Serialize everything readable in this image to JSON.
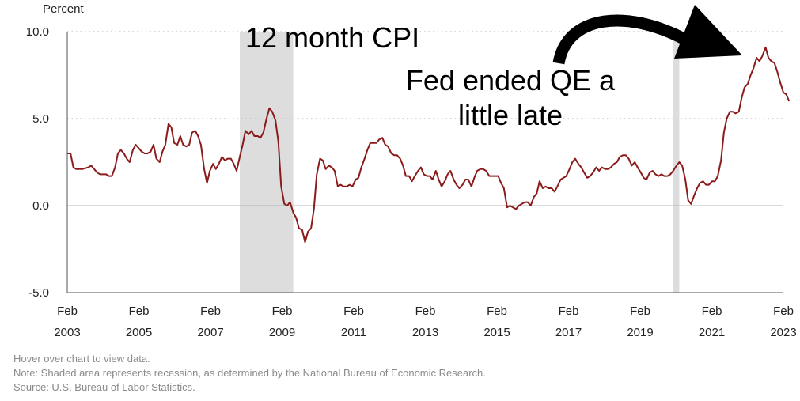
{
  "chart_data": {
    "type": "line",
    "ylabel": "Percent",
    "ylim": [
      -5,
      10
    ],
    "yticks": [
      "10.0",
      "5.0",
      "0.0",
      "-5.0"
    ],
    "xlim": [
      2003.08,
      2023.17
    ],
    "xticks": [
      {
        "month": "Feb",
        "year": "2003"
      },
      {
        "month": "Feb",
        "year": "2005"
      },
      {
        "month": "Feb",
        "year": "2007"
      },
      {
        "month": "Feb",
        "year": "2009"
      },
      {
        "month": "Feb",
        "year": "2011"
      },
      {
        "month": "Feb",
        "year": "2013"
      },
      {
        "month": "Feb",
        "year": "2015"
      },
      {
        "month": "Feb",
        "year": "2017"
      },
      {
        "month": "Feb",
        "year": "2019"
      },
      {
        "month": "Feb",
        "year": "2021"
      },
      {
        "month": "Feb",
        "year": "2023"
      }
    ],
    "grid": "horizontal dotted",
    "recessions": [
      [
        2007.92,
        2009.42
      ],
      [
        2020.08,
        2020.25
      ]
    ],
    "series": [
      {
        "name": "",
        "color": "#8b1a1a",
        "points": [
          [
            2003.08,
            3.0
          ],
          [
            2003.17,
            3.0
          ],
          [
            2003.25,
            2.2
          ],
          [
            2003.33,
            2.1
          ],
          [
            2003.5,
            2.1
          ],
          [
            2003.67,
            2.2
          ],
          [
            2003.75,
            2.3
          ],
          [
            2003.92,
            1.9
          ],
          [
            2004.0,
            1.8
          ],
          [
            2004.17,
            1.8
          ],
          [
            2004.25,
            1.7
          ],
          [
            2004.33,
            1.7
          ],
          [
            2004.42,
            2.2
          ],
          [
            2004.5,
            3.0
          ],
          [
            2004.58,
            3.2
          ],
          [
            2004.67,
            3.0
          ],
          [
            2004.75,
            2.7
          ],
          [
            2004.83,
            2.5
          ],
          [
            2004.92,
            3.2
          ],
          [
            2005.0,
            3.5
          ],
          [
            2005.17,
            3.1
          ],
          [
            2005.25,
            3.0
          ],
          [
            2005.33,
            3.0
          ],
          [
            2005.42,
            3.1
          ],
          [
            2005.5,
            3.5
          ],
          [
            2005.58,
            2.7
          ],
          [
            2005.67,
            2.5
          ],
          [
            2005.75,
            3.1
          ],
          [
            2005.83,
            3.5
          ],
          [
            2005.92,
            4.7
          ],
          [
            2006.0,
            4.5
          ],
          [
            2006.08,
            3.6
          ],
          [
            2006.17,
            3.5
          ],
          [
            2006.25,
            4.0
          ],
          [
            2006.33,
            3.5
          ],
          [
            2006.42,
            3.4
          ],
          [
            2006.5,
            3.5
          ],
          [
            2006.58,
            4.2
          ],
          [
            2006.67,
            4.3
          ],
          [
            2006.75,
            4.0
          ],
          [
            2006.83,
            3.5
          ],
          [
            2006.92,
            2.1
          ],
          [
            2007.0,
            1.3
          ],
          [
            2007.08,
            2.0
          ],
          [
            2007.17,
            2.4
          ],
          [
            2007.25,
            2.1
          ],
          [
            2007.33,
            2.4
          ],
          [
            2007.42,
            2.8
          ],
          [
            2007.5,
            2.6
          ],
          [
            2007.58,
            2.7
          ],
          [
            2007.67,
            2.7
          ],
          [
            2007.75,
            2.4
          ],
          [
            2007.83,
            2.0
          ],
          [
            2007.92,
            2.8
          ],
          [
            2008.0,
            3.5
          ],
          [
            2008.08,
            4.3
          ],
          [
            2008.17,
            4.1
          ],
          [
            2008.25,
            4.3
          ],
          [
            2008.33,
            4.0
          ],
          [
            2008.42,
            4.0
          ],
          [
            2008.5,
            3.9
          ],
          [
            2008.58,
            4.2
          ],
          [
            2008.67,
            5.0
          ],
          [
            2008.75,
            5.6
          ],
          [
            2008.83,
            5.4
          ],
          [
            2008.92,
            4.9
          ],
          [
            2009.0,
            3.7
          ],
          [
            2009.08,
            1.1
          ],
          [
            2009.17,
            0.1
          ],
          [
            2009.25,
            0.0
          ],
          [
            2009.33,
            0.2
          ],
          [
            2009.42,
            -0.4
          ],
          [
            2009.5,
            -0.7
          ],
          [
            2009.58,
            -1.3
          ],
          [
            2009.67,
            -1.4
          ],
          [
            2009.75,
            -2.1
          ],
          [
            2009.83,
            -1.5
          ],
          [
            2009.92,
            -1.3
          ],
          [
            2010.0,
            -0.2
          ],
          [
            2010.08,
            1.8
          ],
          [
            2010.17,
            2.7
          ],
          [
            2010.25,
            2.6
          ],
          [
            2010.33,
            2.1
          ],
          [
            2010.42,
            2.3
          ],
          [
            2010.5,
            2.2
          ],
          [
            2010.58,
            2.0
          ],
          [
            2010.67,
            1.1
          ],
          [
            2010.75,
            1.2
          ],
          [
            2010.83,
            1.1
          ],
          [
            2010.92,
            1.1
          ],
          [
            2011.0,
            1.2
          ],
          [
            2011.08,
            1.1
          ],
          [
            2011.17,
            1.5
          ],
          [
            2011.25,
            1.6
          ],
          [
            2011.33,
            2.2
          ],
          [
            2011.42,
            2.7
          ],
          [
            2011.5,
            3.2
          ],
          [
            2011.58,
            3.6
          ],
          [
            2011.67,
            3.6
          ],
          [
            2011.75,
            3.6
          ],
          [
            2011.83,
            3.8
          ],
          [
            2011.92,
            3.9
          ],
          [
            2012.0,
            3.5
          ],
          [
            2012.08,
            3.4
          ],
          [
            2012.17,
            3.0
          ],
          [
            2012.25,
            2.9
          ],
          [
            2012.33,
            2.9
          ],
          [
            2012.42,
            2.7
          ],
          [
            2012.5,
            2.3
          ],
          [
            2012.58,
            1.7
          ],
          [
            2012.67,
            1.7
          ],
          [
            2012.75,
            1.4
          ],
          [
            2012.83,
            1.7
          ],
          [
            2012.92,
            2.0
          ],
          [
            2013.0,
            2.2
          ],
          [
            2013.08,
            1.8
          ],
          [
            2013.17,
            1.7
          ],
          [
            2013.25,
            1.7
          ],
          [
            2013.33,
            1.5
          ],
          [
            2013.42,
            2.0
          ],
          [
            2013.5,
            1.5
          ],
          [
            2013.58,
            1.1
          ],
          [
            2013.67,
            1.4
          ],
          [
            2013.75,
            1.8
          ],
          [
            2013.83,
            2.0
          ],
          [
            2013.92,
            1.5
          ],
          [
            2014.0,
            1.2
          ],
          [
            2014.08,
            1.0
          ],
          [
            2014.17,
            1.2
          ],
          [
            2014.25,
            1.5
          ],
          [
            2014.33,
            1.5
          ],
          [
            2014.42,
            1.1
          ],
          [
            2014.5,
            1.6
          ],
          [
            2014.58,
            2.0
          ],
          [
            2014.67,
            2.1
          ],
          [
            2014.75,
            2.1
          ],
          [
            2014.83,
            2.0
          ],
          [
            2014.92,
            1.7
          ],
          [
            2015.0,
            1.7
          ],
          [
            2015.08,
            1.7
          ],
          [
            2015.17,
            1.7
          ],
          [
            2015.25,
            1.3
          ],
          [
            2015.33,
            1.0
          ],
          [
            2015.42,
            -0.1
          ],
          [
            2015.5,
            0.0
          ],
          [
            2015.58,
            -0.1
          ],
          [
            2015.67,
            -0.2
          ],
          [
            2015.75,
            0.0
          ],
          [
            2015.83,
            0.1
          ],
          [
            2015.92,
            0.2
          ],
          [
            2016.0,
            0.2
          ],
          [
            2016.08,
            0.0
          ],
          [
            2016.17,
            0.5
          ],
          [
            2016.25,
            0.7
          ],
          [
            2016.33,
            1.4
          ],
          [
            2016.42,
            1.0
          ],
          [
            2016.5,
            1.1
          ],
          [
            2016.58,
            1.0
          ],
          [
            2016.67,
            1.0
          ],
          [
            2016.75,
            0.8
          ],
          [
            2016.83,
            1.1
          ],
          [
            2016.92,
            1.5
          ],
          [
            2017.0,
            1.6
          ],
          [
            2017.08,
            1.7
          ],
          [
            2017.17,
            2.1
          ],
          [
            2017.25,
            2.5
          ],
          [
            2017.33,
            2.7
          ],
          [
            2017.42,
            2.4
          ],
          [
            2017.5,
            2.2
          ],
          [
            2017.58,
            1.9
          ],
          [
            2017.67,
            1.6
          ],
          [
            2017.75,
            1.7
          ],
          [
            2017.83,
            1.9
          ],
          [
            2017.92,
            2.2
          ],
          [
            2018.0,
            2.0
          ],
          [
            2018.08,
            2.2
          ],
          [
            2018.17,
            2.1
          ],
          [
            2018.25,
            2.1
          ],
          [
            2018.33,
            2.2
          ],
          [
            2018.42,
            2.4
          ],
          [
            2018.5,
            2.5
          ],
          [
            2018.58,
            2.8
          ],
          [
            2018.67,
            2.9
          ],
          [
            2018.75,
            2.9
          ],
          [
            2018.83,
            2.7
          ],
          [
            2018.92,
            2.3
          ],
          [
            2019.0,
            2.5
          ],
          [
            2019.08,
            2.2
          ],
          [
            2019.17,
            1.9
          ],
          [
            2019.25,
            1.6
          ],
          [
            2019.33,
            1.5
          ],
          [
            2019.42,
            1.9
          ],
          [
            2019.5,
            2.0
          ],
          [
            2019.58,
            1.8
          ],
          [
            2019.67,
            1.7
          ],
          [
            2019.75,
            1.8
          ],
          [
            2019.83,
            1.7
          ],
          [
            2019.92,
            1.7
          ],
          [
            2020.0,
            1.8
          ],
          [
            2020.08,
            2.0
          ],
          [
            2020.17,
            2.3
          ],
          [
            2020.25,
            2.5
          ],
          [
            2020.33,
            2.3
          ],
          [
            2020.42,
            1.5
          ],
          [
            2020.5,
            0.3
          ],
          [
            2020.58,
            0.1
          ],
          [
            2020.67,
            0.6
          ],
          [
            2020.75,
            1.0
          ],
          [
            2020.83,
            1.3
          ],
          [
            2020.92,
            1.4
          ],
          [
            2021.0,
            1.2
          ],
          [
            2021.08,
            1.2
          ],
          [
            2021.17,
            1.4
          ],
          [
            2021.25,
            1.4
          ],
          [
            2021.33,
            1.7
          ],
          [
            2021.42,
            2.6
          ],
          [
            2021.5,
            4.2
          ],
          [
            2021.58,
            5.0
          ],
          [
            2021.67,
            5.4
          ],
          [
            2021.75,
            5.4
          ],
          [
            2021.83,
            5.3
          ],
          [
            2021.92,
            5.4
          ],
          [
            2022.0,
            6.2
          ],
          [
            2022.08,
            6.8
          ],
          [
            2022.17,
            7.0
          ],
          [
            2022.25,
            7.5
          ],
          [
            2022.33,
            7.9
          ],
          [
            2022.42,
            8.5
          ],
          [
            2022.5,
            8.3
          ],
          [
            2022.58,
            8.6
          ],
          [
            2022.67,
            9.1
          ],
          [
            2022.75,
            8.5
          ],
          [
            2022.83,
            8.3
          ],
          [
            2022.92,
            8.2
          ],
          [
            2023.0,
            7.7
          ],
          [
            2023.08,
            7.1
          ],
          [
            2023.17,
            6.5
          ],
          [
            2023.25,
            6.4
          ],
          [
            2023.33,
            6.0
          ]
        ]
      }
    ],
    "annotations": [
      "12 month CPI",
      "Fed ended QE a",
      "little late"
    ]
  },
  "footer": {
    "hover": "Hover over chart to view data.",
    "note": "Note: Shaded area represents recession, as determined by the National Bureau of Economic Research.",
    "source": "Source: U.S. Bureau of Labor Statistics."
  },
  "colors": {
    "line": "#8b1a1a",
    "recession": "#dddddd",
    "grid": "#c8c8c8",
    "axis": "#555555"
  }
}
